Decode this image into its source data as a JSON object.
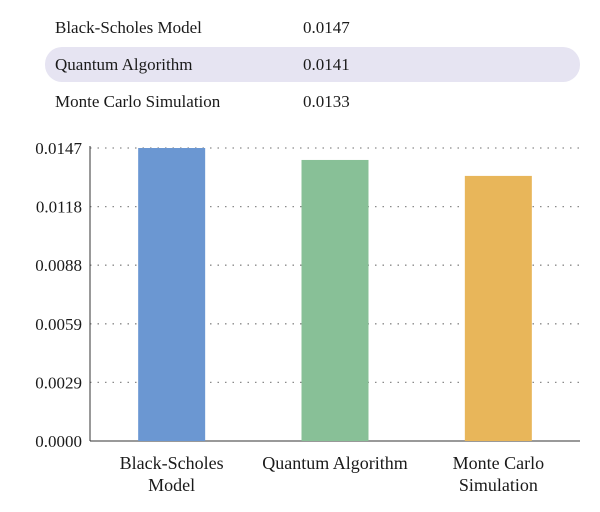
{
  "summary": {
    "rows": [
      {
        "name": "Black-Scholes Model",
        "value": "0.0147",
        "highlighted": false
      },
      {
        "name": "Quantum Algorithm",
        "value": "0.0141",
        "highlighted": true
      },
      {
        "name": "Monte Carlo Simulation",
        "value": "0.0133",
        "highlighted": false
      }
    ],
    "highlight_color": "#e6e4f2"
  },
  "chart_data": {
    "type": "bar",
    "categories": [
      [
        "Black-Scholes",
        "Model"
      ],
      [
        "Quantum Algorithm"
      ],
      [
        "Monte Carlo",
        "Simulation"
      ]
    ],
    "values": [
      0.0147,
      0.0141,
      0.0133
    ],
    "colors": [
      "#6b97d2",
      "#88c097",
      "#e8b65a"
    ],
    "title": "",
    "xlabel": "",
    "ylabel": "",
    "ylim": [
      0,
      0.0147
    ],
    "yticks": [
      "0.0000",
      "0.0029",
      "0.0059",
      "0.0088",
      "0.0118",
      "0.0147"
    ],
    "grid": "horizontal dotted",
    "legend": "none"
  }
}
